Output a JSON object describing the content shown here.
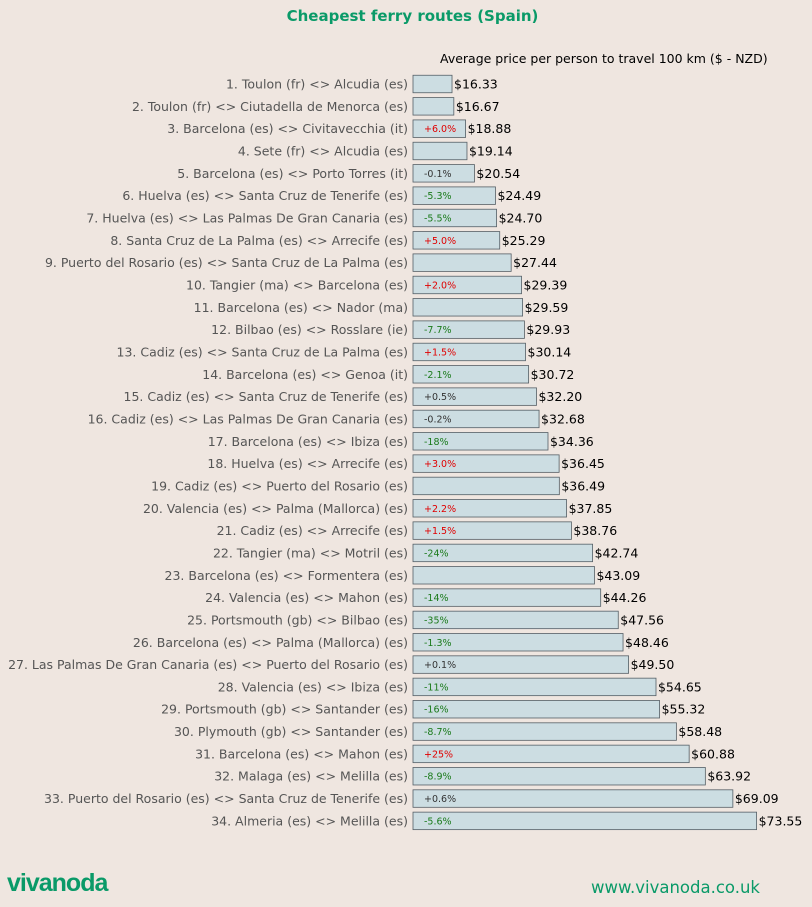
{
  "chart_data": {
    "type": "bar",
    "orientation": "horizontal",
    "title": "Cheapest ferry routes (Spain)",
    "subtitle": "Average price per person to travel 100 km ($ - NZD)",
    "grid": false,
    "categories": [
      "1. Toulon (fr) <> Alcudia (es)",
      "2. Toulon (fr) <> Ciutadella de Menorca (es)",
      "3. Barcelona (es) <> Civitavecchia (it)",
      "4. Sete (fr) <> Alcudia (es)",
      "5. Barcelona (es) <> Porto Torres (it)",
      "6. Huelva (es) <> Santa Cruz de Tenerife (es)",
      "7. Huelva (es) <> Las Palmas De Gran Canaria (es)",
      "8. Santa Cruz de La Palma (es) <> Arrecife (es)",
      "9. Puerto del Rosario (es) <> Santa Cruz de La Palma (es)",
      "10. Tangier (ma) <> Barcelona (es)",
      "11. Barcelona (es) <> Nador (ma)",
      "12. Bilbao (es) <> Rosslare (ie)",
      "13. Cadiz (es) <> Santa Cruz de La Palma (es)",
      "14. Barcelona (es) <> Genoa (it)",
      "15. Cadiz (es) <> Santa Cruz de Tenerife (es)",
      "16. Cadiz (es) <> Las Palmas De Gran Canaria (es)",
      "17. Barcelona (es) <> Ibiza (es)",
      "18. Huelva (es) <> Arrecife (es)",
      "19. Cadiz (es) <> Puerto del Rosario (es)",
      "20. Valencia (es) <> Palma (Mallorca) (es)",
      "21. Cadiz (es) <> Arrecife (es)",
      "22. Tangier (ma) <> Motril (es)",
      "23. Barcelona (es) <> Formentera (es)",
      "24. Valencia (es) <> Mahon (es)",
      "25. Portsmouth (gb) <> Bilbao (es)",
      "26. Barcelona (es) <> Palma (Mallorca) (es)",
      "27. Las Palmas De Gran Canaria (es) <> Puerto del Rosario (es)",
      "28. Valencia (es) <> Ibiza (es)",
      "29. Portsmouth (gb) <> Santander (es)",
      "30. Plymouth (gb) <> Santander (es)",
      "31. Barcelona (es) <> Mahon (es)",
      "32. Malaga (es) <> Melilla (es)",
      "33. Puerto del Rosario (es) <> Santa Cruz de Tenerife (es)",
      "34. Almeria (es) <> Melilla (es)"
    ],
    "values": [
      16.33,
      16.67,
      18.88,
      19.14,
      20.54,
      24.49,
      24.7,
      25.29,
      27.44,
      29.39,
      29.59,
      29.93,
      30.14,
      30.72,
      32.2,
      32.68,
      34.36,
      36.45,
      36.49,
      37.85,
      38.76,
      42.74,
      43.09,
      44.26,
      47.56,
      48.46,
      49.5,
      54.65,
      55.32,
      58.48,
      60.88,
      63.92,
      69.09,
      73.55
    ],
    "value_labels": [
      "$16.33",
      "$16.67",
      "$18.88",
      "$19.14",
      "$20.54",
      "$24.49",
      "$24.70",
      "$25.29",
      "$27.44",
      "$29.39",
      "$29.59",
      "$29.93",
      "$30.14",
      "$30.72",
      "$32.20",
      "$32.68",
      "$34.36",
      "$36.45",
      "$36.49",
      "$37.85",
      "$38.76",
      "$42.74",
      "$43.09",
      "$44.26",
      "$47.56",
      "$48.46",
      "$49.50",
      "$54.65",
      "$55.32",
      "$58.48",
      "$60.88",
      "$63.92",
      "$69.09",
      "$73.55"
    ],
    "changes": [
      "",
      "",
      "+6.0%",
      "",
      "-0.1%",
      "-5.3%",
      "-5.5%",
      "+5.0%",
      "",
      "+2.0%",
      "",
      "-7.7%",
      "+1.5%",
      "-2.1%",
      "+0.5%",
      "-0.2%",
      "-18%",
      "+3.0%",
      "",
      "+2.2%",
      "+1.5%",
      "-24%",
      "",
      "-14%",
      "-35%",
      "-1.3%",
      "+0.1%",
      "-11%",
      "-16%",
      "-8.7%",
      "+25%",
      "-8.9%",
      "+0.6%",
      "-5.6%"
    ],
    "xlim": [
      9,
      74
    ],
    "colors": {
      "background": "#efe6e0",
      "bar_fill": "#ccdde2",
      "bar_stroke": "#555f66",
      "label_text": "#555555",
      "value_text": "#000000",
      "change_increase": "#e00000",
      "change_decrease": "#1a7a1a",
      "change_small": "#333333",
      "accent": "#0a9a68"
    }
  },
  "footer": {
    "logo": "vivanoda",
    "url": "www.vivanoda.co.uk"
  }
}
